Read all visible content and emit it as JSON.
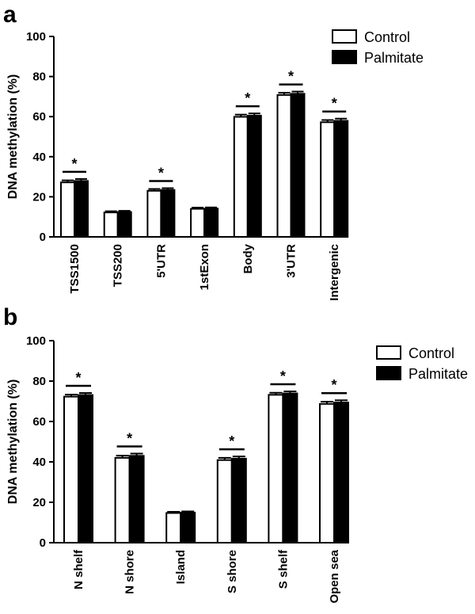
{
  "chart_data": [
    {
      "panel": "a",
      "type": "bar",
      "ylabel": "DNA methylation (%)",
      "xlabel": "",
      "ylim": [
        0,
        100
      ],
      "yticks": [
        0,
        20,
        40,
        60,
        80,
        100
      ],
      "categories": [
        "TSS1500",
        "TSS200",
        "5'UTR",
        "1stExon",
        "Body",
        "3'UTR",
        "Intergenic"
      ],
      "series": [
        {
          "name": "Control",
          "color": "#ffffff",
          "values": [
            27.2,
            12.2,
            23.0,
            14.0,
            59.9,
            70.8,
            57.2
          ],
          "errors": [
            1.0,
            0.6,
            0.9,
            0.6,
            1.1,
            1.1,
            1.1
          ]
        },
        {
          "name": "Palmitate",
          "color": "#000000",
          "values": [
            27.9,
            12.4,
            23.4,
            14.1,
            60.5,
            71.4,
            57.9
          ],
          "errors": [
            1.0,
            0.6,
            0.9,
            0.6,
            1.1,
            1.1,
            1.1
          ]
        }
      ],
      "significance": [
        "*",
        "",
        "*",
        "",
        "*",
        "*",
        "*"
      ],
      "legend": [
        "Control",
        "Palmitate"
      ],
      "legend_position": "top-right",
      "grid": false
    },
    {
      "panel": "b",
      "type": "bar",
      "ylabel": "DNA methylation (%)",
      "xlabel": "",
      "ylim": [
        0,
        100
      ],
      "yticks": [
        0,
        20,
        40,
        60,
        80,
        100
      ],
      "categories": [
        "N shelf",
        "N shore",
        "Island",
        "S shore",
        "S shelf",
        "Open sea"
      ],
      "series": [
        {
          "name": "Control",
          "color": "#ffffff",
          "values": [
            72.3,
            42.0,
            14.7,
            40.9,
            73.2,
            68.7
          ],
          "errors": [
            1.0,
            1.1,
            0.6,
            1.1,
            1.0,
            1.1
          ]
        },
        {
          "name": "Palmitate",
          "color": "#000000",
          "values": [
            73.1,
            43.0,
            14.9,
            41.6,
            73.9,
            69.4
          ],
          "errors": [
            1.0,
            1.1,
            0.6,
            1.1,
            1.0,
            1.1
          ]
        }
      ],
      "significance": [
        "*",
        "*",
        "",
        "*",
        "*",
        "*"
      ],
      "legend": [
        "Control",
        "Palmitate"
      ],
      "legend_position": "top-right",
      "grid": false
    }
  ]
}
